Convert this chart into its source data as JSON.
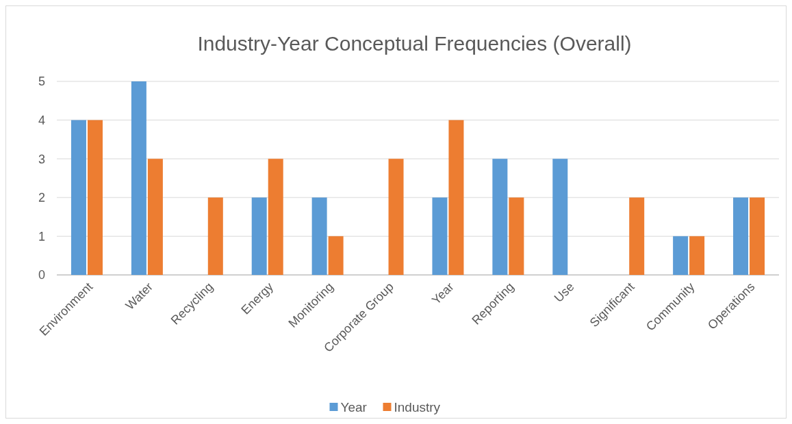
{
  "chart_data": {
    "type": "bar",
    "title": "Industry-Year Conceptual Frequencies (Overall)",
    "categories": [
      "Environment",
      "Water",
      "Recycling",
      "Energy",
      "Monitoring",
      "Corporate Group",
      "Year",
      "Reporting",
      "Use",
      "Significant",
      "Community",
      "Operations"
    ],
    "series": [
      {
        "name": "Year",
        "color": "#5b9bd5",
        "values": [
          4,
          5,
          0,
          2,
          2,
          0,
          2,
          3,
          3,
          0,
          1,
          2
        ]
      },
      {
        "name": "Industry",
        "color": "#ed7d31",
        "values": [
          4,
          3,
          2,
          3,
          1,
          3,
          4,
          2,
          0,
          2,
          1,
          2
        ]
      }
    ],
    "ylim": [
      0,
      5
    ],
    "yticks": [
      0,
      1,
      2,
      3,
      4,
      5
    ],
    "grid": "y",
    "legend": "bottom"
  }
}
